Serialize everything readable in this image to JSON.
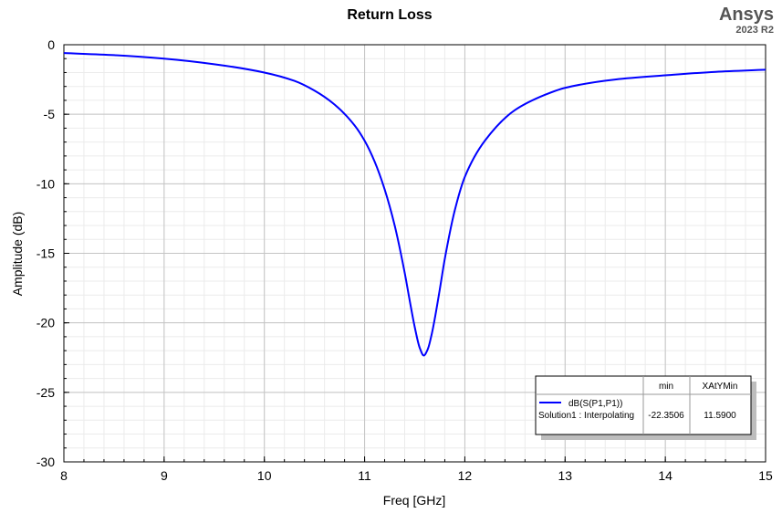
{
  "chart_data": {
    "type": "line",
    "title": "Return Loss",
    "brand": "Ansys",
    "version": "2023 R2",
    "xlabel": "Freq [GHz]",
    "ylabel": "Amplitude (dB)",
    "xlim": [
      8,
      15
    ],
    "ylim": [
      -30,
      0
    ],
    "xticks": [
      "8",
      "9",
      "10",
      "11",
      "12",
      "13",
      "14",
      "15"
    ],
    "yticks": [
      "0",
      "-5",
      "-10",
      "-15",
      "-20",
      "-25",
      "-30"
    ],
    "grid": true,
    "legend_position": "bottom-right",
    "series": [
      {
        "name": "dB(S(P1,P1))",
        "solution": "Solution1 : Interpolating",
        "color": "#0000ff",
        "x": [
          8.0,
          8.5,
          9.0,
          9.5,
          10.0,
          10.3,
          10.5,
          10.7,
          10.9,
          11.0,
          11.1,
          11.2,
          11.3,
          11.4,
          11.45,
          11.5,
          11.55,
          11.59,
          11.63,
          11.67,
          11.7,
          11.75,
          11.8,
          11.9,
          12.0,
          12.2,
          12.5,
          12.8,
          13.0,
          13.5,
          14.0,
          14.5,
          15.0
        ],
        "y": [
          -0.6,
          -0.75,
          -1.0,
          -1.4,
          -2.0,
          -2.6,
          -3.3,
          -4.3,
          -5.8,
          -6.9,
          -8.4,
          -10.4,
          -13.0,
          -16.4,
          -18.4,
          -20.3,
          -21.8,
          -22.35,
          -21.9,
          -20.8,
          -19.7,
          -17.6,
          -15.4,
          -11.9,
          -9.5,
          -6.9,
          -4.7,
          -3.6,
          -3.1,
          -2.5,
          -2.2,
          -1.95,
          -1.8
        ]
      }
    ],
    "markers_table": {
      "columns": [
        "min",
        "XAtYMin"
      ],
      "rows": [
        {
          "trace": "dB(S(P1,P1))",
          "solution": "Solution1 : Interpolating",
          "min": "-22.3506",
          "XAtYMin": "11.5900"
        }
      ]
    }
  }
}
